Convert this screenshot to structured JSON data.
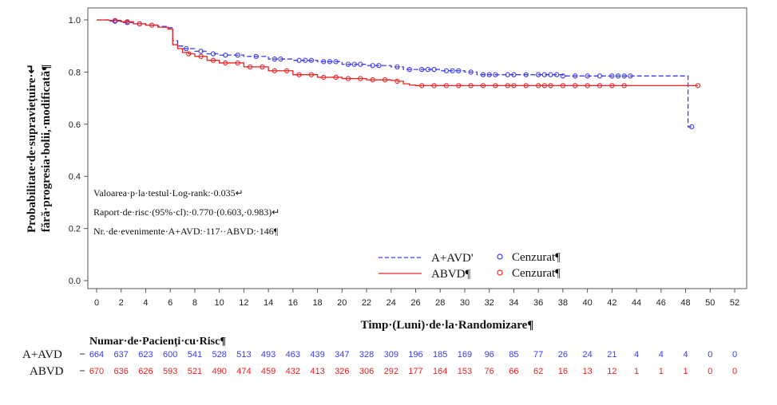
{
  "chart_data": {
    "type": "line",
    "ylabel_line1": "Probabilitate·de·supraviețuire·↵",
    "ylabel_line2": "fără·progresia·bolii,·modificată¶",
    "xlabel": "Timp·(Luni)·de·la·Randomizare¶",
    "xlim": [
      0,
      52
    ],
    "ylim": [
      0.0,
      1.0
    ],
    "x_ticks": [
      "0",
      "2",
      "4",
      "6",
      "8",
      "10",
      "12",
      "14",
      "16",
      "18",
      "20",
      "22",
      "24",
      "26",
      "28",
      "30",
      "32",
      "34",
      "36",
      "38",
      "40",
      "42",
      "44",
      "46",
      "48",
      "50",
      "52"
    ],
    "y_ticks": [
      "0.0",
      "0.2",
      "0.4",
      "0.6",
      "0.8",
      "1.0"
    ],
    "annotations": [
      "Valoarea·p·la·testul·Log-rank:·0.035↵",
      "Raport·de·risc·(95%·cl):·0.770·(0.603,·0.983)↵",
      "Nr.·de·evenimente·A+AVD:·117··ABVD:·146¶"
    ],
    "legend_placement": "bottom-right",
    "legend_censored_label": "Cenzurat¶",
    "series": [
      {
        "name": "A+AVD",
        "legend_label": "A+AVD'",
        "color": "#3a3af0",
        "style": "dashed",
        "x": [
          0,
          1,
          2,
          3,
          4,
          5,
          5.8,
          6.2,
          6.6,
          7,
          8,
          9,
          10,
          12,
          14,
          16,
          18,
          20,
          22,
          24,
          25,
          26,
          28,
          30,
          31,
          33,
          36,
          38,
          42,
          44,
          48.2,
          48.2,
          48.5
        ],
        "y": [
          1.0,
          0.995,
          0.99,
          0.985,
          0.98,
          0.975,
          0.97,
          0.92,
          0.9,
          0.89,
          0.88,
          0.87,
          0.865,
          0.86,
          0.85,
          0.845,
          0.84,
          0.83,
          0.825,
          0.82,
          0.81,
          0.81,
          0.805,
          0.8,
          0.79,
          0.79,
          0.79,
          0.785,
          0.785,
          0.785,
          0.785,
          0.59,
          0.59
        ],
        "censored_x": [
          1.5,
          2.5,
          3.5,
          7.3,
          8.5,
          9.5,
          10.5,
          11.5,
          13,
          14.5,
          15,
          16.5,
          17,
          17.5,
          18.5,
          19,
          19.5,
          20.5,
          21,
          21.5,
          22.5,
          23,
          24.5,
          25.5,
          26.5,
          27,
          27.5,
          28.5,
          29,
          29.5,
          30.5,
          31.5,
          32,
          32.5,
          33.5,
          34,
          35,
          36,
          36.5,
          37,
          37.5,
          38,
          39,
          40,
          41,
          42,
          42.5,
          43,
          43.5,
          48.5
        ],
        "risk_label": "A+AVD",
        "at_risk": [
          664,
          637,
          623,
          600,
          541,
          528,
          513,
          493,
          463,
          439,
          347,
          328,
          309,
          196,
          185,
          169,
          96,
          85,
          77,
          26,
          24,
          21,
          4,
          4,
          4,
          0,
          0
        ]
      },
      {
        "name": "ABVD",
        "legend_label": "ABVD¶",
        "color": "#f02020",
        "style": "solid",
        "x": [
          0,
          1,
          2,
          3,
          4,
          5,
          5.8,
          6.2,
          6.6,
          7,
          7.5,
          8,
          9,
          10,
          12,
          14,
          16,
          18,
          20,
          22,
          24,
          24.5,
          25,
          25.5,
          26,
          28,
          30,
          32,
          36,
          38,
          42,
          44,
          49
        ],
        "y": [
          1.0,
          0.998,
          0.993,
          0.985,
          0.98,
          0.972,
          0.965,
          0.905,
          0.89,
          0.875,
          0.87,
          0.86,
          0.845,
          0.835,
          0.82,
          0.805,
          0.79,
          0.78,
          0.775,
          0.77,
          0.768,
          0.765,
          0.755,
          0.75,
          0.748,
          0.748,
          0.748,
          0.748,
          0.748,
          0.748,
          0.748,
          0.748,
          0.748
        ],
        "censored_x": [
          1.5,
          2.5,
          3.5,
          4.5,
          7.5,
          8.5,
          9.5,
          10.5,
          11.5,
          12.5,
          13.5,
          14.5,
          15.5,
          16.5,
          17.5,
          18.5,
          19.5,
          20.5,
          21.5,
          22.5,
          23.5,
          24.5,
          26.5,
          27.5,
          28.5,
          29.5,
          30.5,
          31.5,
          32.5,
          33.5,
          34,
          35,
          36,
          36.5,
          37,
          38,
          39,
          40,
          41,
          42,
          43,
          49
        ],
        "risk_label": "ABVD",
        "at_risk": [
          670,
          636,
          626,
          593,
          521,
          490,
          474,
          459,
          432,
          413,
          326,
          306,
          292,
          177,
          164,
          153,
          76,
          66,
          62,
          16,
          13,
          12,
          1,
          1,
          1,
          0,
          0
        ]
      }
    ],
    "risk_table_title": "Numar·de·Pacienți·cu·Risc¶"
  }
}
